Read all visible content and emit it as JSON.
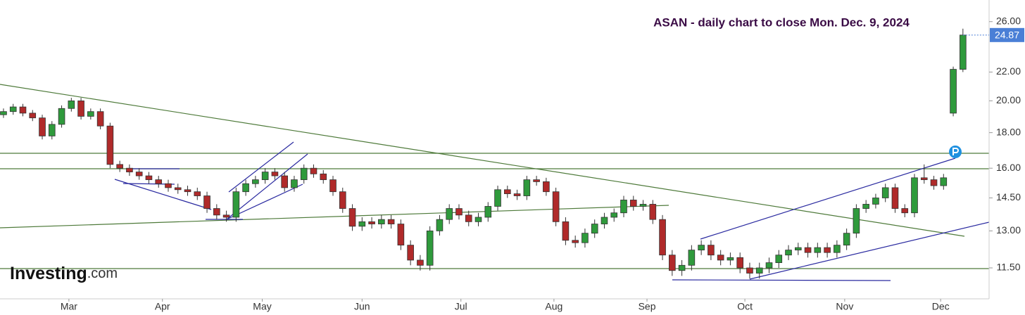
{
  "chart_data": {
    "type": "candlestick",
    "title": "ASAN - daily chart to close Mon. Dec. 9, 2024",
    "watermark": {
      "brand": "Investing",
      "suffix": ".com"
    },
    "log_scale": true,
    "ylim": [
      10.38,
      27.93
    ],
    "yticks": [
      {
        "value": 26,
        "label": "26.00"
      },
      {
        "value": 22,
        "label": "22.00"
      },
      {
        "value": 20,
        "label": "20.00"
      },
      {
        "value": 18,
        "label": "18.00"
      },
      {
        "value": 16,
        "label": "16.00"
      },
      {
        "value": 14.5,
        "label": "14.50"
      },
      {
        "value": 13,
        "label": "13.00"
      },
      {
        "value": 11.5,
        "label": "11.50"
      }
    ],
    "xlim": [
      -0.36,
      101.7
    ],
    "xticks": [
      {
        "value": 6.75,
        "label": "Mar"
      },
      {
        "value": 16.4,
        "label": "Apr"
      },
      {
        "value": 26.7,
        "label": "May"
      },
      {
        "value": 37.0,
        "label": "Jun"
      },
      {
        "value": 47.2,
        "label": "Jul"
      },
      {
        "value": 56.8,
        "label": "Aug"
      },
      {
        "value": 66.4,
        "label": "Sep"
      },
      {
        "value": 76.5,
        "label": "Oct"
      },
      {
        "value": 86.8,
        "label": "Nov"
      },
      {
        "value": 96.7,
        "label": "Dec"
      }
    ],
    "up_color": "#2f9a3c",
    "down_color": "#b02a2a",
    "price_tag_color": "#4a7fd6",
    "open": [
      19.1,
      19.3,
      19.6,
      19.2,
      18.9,
      17.8,
      18.5,
      19.5,
      20.0,
      19.0,
      19.3,
      18.4,
      16.2,
      16.0,
      15.8,
      15.6,
      15.4,
      15.2,
      15.0,
      14.9,
      14.8,
      14.6,
      14.0,
      13.7,
      13.6,
      14.8,
      15.2,
      15.4,
      15.8,
      15.6,
      15.0,
      15.4,
      16.0,
      15.7,
      15.4,
      14.8,
      14.0,
      13.2,
      13.4,
      13.3,
      13.5,
      13.3,
      12.4,
      11.8,
      11.6,
      13.0,
      13.5,
      14.0,
      13.7,
      13.4,
      13.6,
      14.1,
      14.9,
      14.7,
      14.6,
      15.4,
      15.3,
      14.8,
      13.4,
      12.6,
      12.5,
      12.9,
      13.3,
      13.6,
      13.8,
      14.4,
      14.1,
      14.2,
      13.5,
      12.0,
      11.4,
      11.6,
      12.2,
      12.4,
      12.0,
      11.8,
      11.9,
      11.5,
      11.3,
      11.5,
      11.7,
      12.0,
      12.2,
      12.3,
      12.1,
      12.3,
      12.1,
      12.4,
      12.9,
      14.0,
      14.2,
      14.5,
      15.0,
      14.0,
      13.8,
      15.5,
      15.4,
      15.1,
      19.2,
      22.2
    ],
    "high": [
      19.5,
      19.8,
      19.8,
      19.4,
      19.1,
      18.7,
      19.7,
      20.2,
      20.2,
      19.5,
      19.5,
      18.6,
      16.4,
      16.2,
      16.0,
      15.8,
      15.6,
      15.4,
      15.2,
      15.1,
      15.0,
      14.8,
      14.2,
      13.9,
      15.0,
      15.4,
      15.6,
      16.0,
      16.0,
      15.8,
      15.6,
      16.2,
      16.2,
      15.9,
      15.6,
      15.0,
      14.2,
      13.6,
      13.6,
      13.7,
      13.7,
      13.5,
      12.6,
      12.0,
      13.2,
      13.7,
      14.2,
      14.2,
      13.9,
      13.8,
      14.3,
      15.1,
      15.1,
      14.9,
      15.6,
      15.6,
      15.5,
      15.0,
      13.6,
      12.8,
      13.1,
      13.5,
      13.8,
      14.0,
      14.6,
      14.6,
      14.4,
      14.4,
      13.7,
      12.2,
      11.8,
      12.4,
      12.6,
      12.6,
      12.2,
      12.1,
      12.1,
      11.7,
      11.7,
      11.9,
      12.2,
      12.4,
      12.5,
      12.5,
      12.5,
      12.5,
      12.6,
      13.1,
      14.2,
      14.4,
      14.7,
      15.2,
      15.2,
      14.2,
      15.7,
      16.2,
      15.6,
      15.7,
      22.4,
      25.4
    ],
    "low": [
      18.9,
      19.1,
      19.0,
      18.7,
      17.6,
      17.6,
      18.3,
      19.3,
      18.8,
      18.8,
      18.2,
      16.0,
      15.8,
      15.6,
      15.4,
      15.2,
      15.0,
      14.8,
      14.7,
      14.6,
      14.4,
      13.8,
      13.5,
      13.4,
      13.4,
      14.6,
      15.0,
      15.2,
      15.4,
      14.8,
      14.8,
      15.2,
      15.5,
      15.2,
      14.6,
      13.8,
      13.0,
      13.0,
      13.1,
      13.1,
      13.1,
      12.2,
      11.6,
      11.4,
      11.4,
      12.8,
      13.3,
      13.5,
      13.2,
      13.2,
      13.4,
      13.9,
      14.5,
      14.4,
      14.4,
      15.1,
      14.6,
      13.2,
      12.4,
      12.3,
      12.3,
      12.7,
      13.1,
      13.4,
      13.6,
      13.9,
      13.9,
      13.3,
      11.8,
      11.2,
      11.2,
      11.4,
      12.0,
      11.8,
      11.6,
      11.6,
      11.3,
      11.1,
      11.1,
      11.3,
      11.5,
      11.8,
      12.0,
      11.9,
      11.9,
      11.9,
      11.9,
      12.2,
      12.7,
      13.8,
      14.0,
      14.3,
      13.8,
      13.6,
      13.6,
      15.2,
      14.9,
      14.9,
      19.0,
      22.0
    ],
    "close": [
      19.3,
      19.6,
      19.2,
      18.9,
      17.8,
      18.5,
      19.5,
      20.0,
      19.0,
      19.3,
      18.4,
      16.2,
      16.0,
      15.8,
      15.6,
      15.4,
      15.2,
      15.0,
      14.9,
      14.8,
      14.6,
      14.0,
      13.7,
      13.6,
      14.8,
      15.2,
      15.4,
      15.8,
      15.6,
      15.0,
      15.4,
      16.0,
      15.7,
      15.4,
      14.8,
      14.0,
      13.2,
      13.4,
      13.3,
      13.5,
      13.3,
      12.4,
      11.8,
      11.6,
      13.0,
      13.5,
      14.0,
      13.7,
      13.4,
      13.6,
      14.1,
      14.9,
      14.7,
      14.6,
      15.4,
      15.3,
      14.8,
      13.4,
      12.6,
      12.5,
      12.9,
      13.3,
      13.6,
      13.8,
      14.4,
      14.1,
      14.2,
      13.5,
      12.0,
      11.4,
      11.6,
      12.2,
      12.4,
      12.0,
      11.8,
      11.9,
      11.5,
      11.3,
      11.5,
      11.7,
      12.0,
      12.2,
      12.3,
      12.1,
      12.3,
      12.1,
      12.4,
      12.9,
      14.0,
      14.2,
      14.5,
      15.0,
      14.0,
      13.8,
      15.5,
      15.4,
      15.1,
      15.5,
      22.2,
      24.87
    ]
  }
}
